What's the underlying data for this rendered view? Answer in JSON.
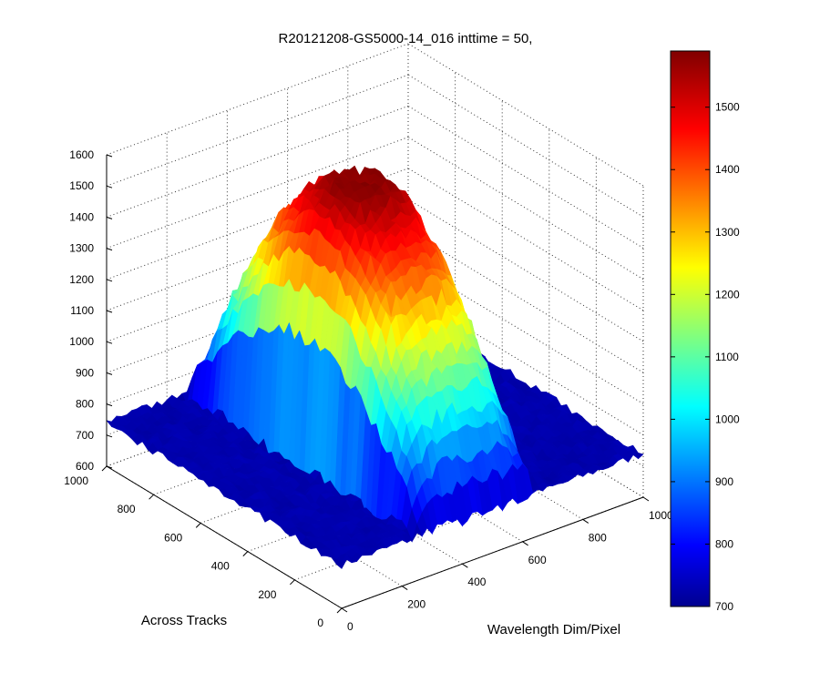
{
  "chart_data": {
    "type": "surface",
    "title": "R20121208-GS5000-14_016 inttime = 50,",
    "xlabel": "Across Tracks",
    "ylabel": "Wavelength Dim/Pixel",
    "zlabel": "",
    "xlim": [
      0,
      1000
    ],
    "ylim": [
      0,
      1000
    ],
    "zlim": [
      600,
      1600
    ],
    "x_ticks": [
      "0",
      "200",
      "400",
      "600",
      "800",
      "1000"
    ],
    "y_ticks": [
      "0",
      "200",
      "400",
      "600",
      "800",
      "1000"
    ],
    "z_ticks": [
      "600",
      "700",
      "800",
      "900",
      "1000",
      "1100",
      "1200",
      "1300",
      "1400",
      "1500",
      "1600"
    ],
    "grid": true,
    "colormap": "jet",
    "colorbar": {
      "range": [
        700,
        1590
      ],
      "ticks": [
        "800",
        "900",
        "1000",
        "1100",
        "1200",
        "1300",
        "1400",
        "1500",
        "700"
      ]
    },
    "surface": {
      "background_level": 740,
      "peak_value": 1590,
      "bump_across_tracks_range": [
        0,
        1000
      ],
      "bump_wavelength_range": [
        250,
        650
      ],
      "bump_center_wavelength": 450,
      "noise_amplitude": 25
    }
  }
}
